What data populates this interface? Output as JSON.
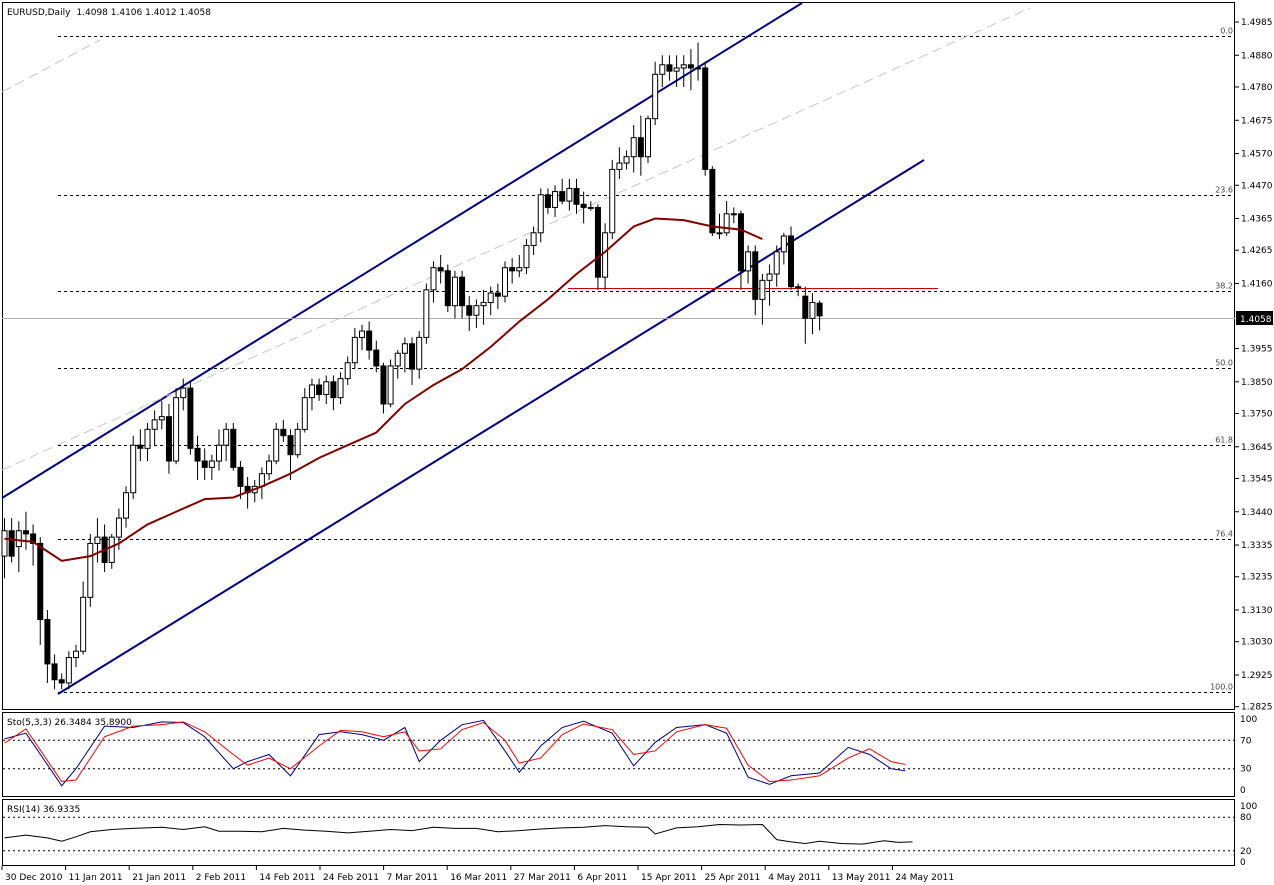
{
  "chart_data": {
    "type": "candlestick",
    "header": {
      "symbol": "EURUSD,Daily",
      "ohlc": "1.4098 1.4106 1.4012 1.4058"
    },
    "price_axis": {
      "ticks": [
        "1.4985",
        "1.4880",
        "1.4780",
        "1.4675",
        "1.4570",
        "1.4470",
        "1.4365",
        "1.4265",
        "1.4160",
        "1.4058",
        "1.3955",
        "1.3850",
        "1.3750",
        "1.3645",
        "1.3545",
        "1.3440",
        "1.3335",
        "1.3235",
        "1.3130",
        "1.3030",
        "1.2925",
        "1.2825"
      ],
      "ylim": [
        1.2825,
        1.5015
      ],
      "current_price": "1.4058"
    },
    "date_axis": {
      "labels": [
        "30 Dec 2010",
        "11 Jan 2011",
        "21 Jan 2011",
        "2 Feb 2011",
        "14 Feb 2011",
        "24 Feb 2011",
        "7 Mar 2011",
        "16 Mar 2011",
        "27 Mar 2011",
        "6 Apr 2011",
        "15 Apr 2011",
        "25 Apr 2011",
        "4 May 2011",
        "13 May 2011",
        "24 May 2011"
      ]
    },
    "fibonacci_levels": [
      {
        "label": "0.0",
        "price": 1.494
      },
      {
        "label": "23.6",
        "price": 1.444
      },
      {
        "label": "38.2",
        "price": 1.4135
      },
      {
        "label": "50.0",
        "price": 1.3895
      },
      {
        "label": "61.8",
        "price": 1.365
      },
      {
        "label": "76.4",
        "price": 1.3355
      },
      {
        "label": "100.0",
        "price": 1.287
      }
    ],
    "moving_average": [
      [
        0,
        1.3355
      ],
      [
        4,
        1.3345
      ],
      [
        8,
        1.3285
      ],
      [
        12,
        1.33
      ],
      [
        16,
        1.334
      ],
      [
        20,
        1.34
      ],
      [
        24,
        1.344
      ],
      [
        28,
        1.348
      ],
      [
        32,
        1.3485
      ],
      [
        36,
        1.352
      ],
      [
        40,
        1.356
      ],
      [
        44,
        1.361
      ],
      [
        48,
        1.365
      ],
      [
        52,
        1.369
      ],
      [
        56,
        1.378
      ],
      [
        60,
        1.384
      ],
      [
        64,
        1.389
      ],
      [
        68,
        1.396
      ],
      [
        72,
        1.404
      ],
      [
        76,
        1.411
      ],
      [
        80,
        1.419
      ],
      [
        84,
        1.426
      ],
      [
        88,
        1.434
      ],
      [
        91,
        1.4365
      ],
      [
        95,
        1.436
      ],
      [
        99,
        1.434
      ],
      [
        103,
        1.433
      ],
      [
        106,
        1.43
      ]
    ],
    "candles": [
      [
        1.33,
        1.342,
        1.323,
        1.338
      ],
      [
        1.338,
        1.342,
        1.328,
        1.33
      ],
      [
        1.333,
        1.341,
        1.325,
        1.338
      ],
      [
        1.338,
        1.344,
        1.332,
        1.337
      ],
      [
        1.337,
        1.34,
        1.327,
        1.334
      ],
      [
        1.334,
        1.336,
        1.302,
        1.31
      ],
      [
        1.31,
        1.313,
        1.29,
        1.296
      ],
      [
        1.296,
        1.299,
        1.288,
        1.291
      ],
      [
        1.291,
        1.293,
        1.288,
        1.29
      ],
      [
        1.29,
        1.3,
        1.288,
        1.298
      ],
      [
        1.298,
        1.302,
        1.295,
        1.3
      ],
      [
        1.3,
        1.322,
        1.299,
        1.317
      ],
      [
        1.317,
        1.337,
        1.314,
        1.334
      ],
      [
        1.334,
        1.342,
        1.328,
        1.336
      ],
      [
        1.336,
        1.34,
        1.325,
        1.328
      ],
      [
        1.328,
        1.337,
        1.326,
        1.336
      ],
      [
        1.336,
        1.345,
        1.332,
        1.342
      ],
      [
        1.342,
        1.352,
        1.339,
        1.35
      ],
      [
        1.35,
        1.368,
        1.348,
        1.365
      ],
      [
        1.365,
        1.37,
        1.36,
        1.364
      ],
      [
        1.364,
        1.372,
        1.36,
        1.37
      ],
      [
        1.37,
        1.376,
        1.365,
        1.373
      ],
      [
        1.373,
        1.379,
        1.37,
        1.374
      ],
      [
        1.374,
        1.378,
        1.356,
        1.36
      ],
      [
        1.36,
        1.383,
        1.359,
        1.38
      ],
      [
        1.38,
        1.386,
        1.376,
        1.383
      ],
      [
        1.383,
        1.385,
        1.362,
        1.364
      ],
      [
        1.364,
        1.368,
        1.354,
        1.36
      ],
      [
        1.36,
        1.364,
        1.354,
        1.358
      ],
      [
        1.358,
        1.362,
        1.354,
        1.36
      ],
      [
        1.36,
        1.37,
        1.357,
        1.365
      ],
      [
        1.365,
        1.372,
        1.36,
        1.37
      ],
      [
        1.37,
        1.372,
        1.357,
        1.358
      ],
      [
        1.358,
        1.36,
        1.348,
        1.352
      ],
      [
        1.352,
        1.355,
        1.345,
        1.35
      ],
      [
        1.35,
        1.354,
        1.347,
        1.352
      ],
      [
        1.352,
        1.358,
        1.348,
        1.356
      ],
      [
        1.356,
        1.362,
        1.354,
        1.36
      ],
      [
        1.36,
        1.372,
        1.359,
        1.37
      ],
      [
        1.37,
        1.373,
        1.366,
        1.368
      ],
      [
        1.368,
        1.37,
        1.354,
        1.362
      ],
      [
        1.362,
        1.372,
        1.361,
        1.37
      ],
      [
        1.37,
        1.383,
        1.369,
        1.38
      ],
      [
        1.38,
        1.386,
        1.376,
        1.384
      ],
      [
        1.384,
        1.386,
        1.379,
        1.381
      ],
      [
        1.381,
        1.387,
        1.378,
        1.385
      ],
      [
        1.385,
        1.387,
        1.376,
        1.38
      ],
      [
        1.38,
        1.388,
        1.378,
        1.386
      ],
      [
        1.386,
        1.393,
        1.384,
        1.391
      ],
      [
        1.391,
        1.402,
        1.389,
        1.399
      ],
      [
        1.399,
        1.403,
        1.395,
        1.401
      ],
      [
        1.401,
        1.404,
        1.392,
        1.395
      ],
      [
        1.395,
        1.398,
        1.388,
        1.39
      ],
      [
        1.39,
        1.391,
        1.375,
        1.378
      ],
      [
        1.378,
        1.392,
        1.377,
        1.39
      ],
      [
        1.39,
        1.395,
        1.386,
        1.394
      ],
      [
        1.394,
        1.399,
        1.388,
        1.397
      ],
      [
        1.397,
        1.399,
        1.384,
        1.389
      ],
      [
        1.389,
        1.401,
        1.386,
        1.399
      ],
      [
        1.399,
        1.416,
        1.397,
        1.414
      ],
      [
        1.414,
        1.423,
        1.41,
        1.421
      ],
      [
        1.421,
        1.425,
        1.416,
        1.42
      ],
      [
        1.42,
        1.422,
        1.407,
        1.409
      ],
      [
        1.409,
        1.42,
        1.405,
        1.418
      ],
      [
        1.418,
        1.42,
        1.405,
        1.409
      ],
      [
        1.409,
        1.412,
        1.401,
        1.406
      ],
      [
        1.406,
        1.411,
        1.402,
        1.409
      ],
      [
        1.409,
        1.414,
        1.403,
        1.41
      ],
      [
        1.41,
        1.415,
        1.406,
        1.413
      ],
      [
        1.413,
        1.416,
        1.408,
        1.412
      ],
      [
        1.412,
        1.423,
        1.41,
        1.421
      ],
      [
        1.421,
        1.424,
        1.416,
        1.42
      ],
      [
        1.42,
        1.425,
        1.418,
        1.421
      ],
      [
        1.421,
        1.43,
        1.419,
        1.428
      ],
      [
        1.428,
        1.434,
        1.425,
        1.432
      ],
      [
        1.432,
        1.446,
        1.429,
        1.444
      ],
      [
        1.444,
        1.446,
        1.438,
        1.44
      ],
      [
        1.44,
        1.447,
        1.437,
        1.445
      ],
      [
        1.445,
        1.449,
        1.441,
        1.442
      ],
      [
        1.442,
        1.449,
        1.439,
        1.446
      ],
      [
        1.446,
        1.449,
        1.438,
        1.441
      ],
      [
        1.441,
        1.445,
        1.435,
        1.44
      ],
      [
        1.44,
        1.442,
        1.439,
        1.44
      ],
      [
        1.44,
        1.441,
        1.414,
        1.418
      ],
      [
        1.418,
        1.435,
        1.414,
        1.432
      ],
      [
        1.432,
        1.455,
        1.43,
        1.452
      ],
      [
        1.452,
        1.459,
        1.449,
        1.454
      ],
      [
        1.454,
        1.458,
        1.452,
        1.456
      ],
      [
        1.456,
        1.466,
        1.451,
        1.462
      ],
      [
        1.462,
        1.469,
        1.45,
        1.456
      ],
      [
        1.456,
        1.469,
        1.454,
        1.468
      ],
      [
        1.468,
        1.486,
        1.466,
        1.482
      ],
      [
        1.482,
        1.488,
        1.478,
        1.485
      ],
      [
        1.485,
        1.488,
        1.48,
        1.483
      ],
      [
        1.483,
        1.488,
        1.478,
        1.484
      ],
      [
        1.484,
        1.488,
        1.478,
        1.485
      ],
      [
        1.485,
        1.49,
        1.477,
        1.484
      ],
      [
        1.484,
        1.492,
        1.48,
        1.484
      ],
      [
        1.484,
        1.486,
        1.45,
        1.452
      ],
      [
        1.452,
        1.453,
        1.431,
        1.432
      ],
      [
        1.432,
        1.438,
        1.43,
        1.432
      ],
      [
        1.432,
        1.442,
        1.431,
        1.438
      ],
      [
        1.438,
        1.44,
        1.435,
        1.438
      ],
      [
        1.438,
        1.439,
        1.414,
        1.42
      ],
      [
        1.42,
        1.428,
        1.416,
        1.426
      ],
      [
        1.426,
        1.428,
        1.406,
        1.411
      ],
      [
        1.411,
        1.419,
        1.403,
        1.417
      ],
      [
        1.417,
        1.422,
        1.409,
        1.419
      ],
      [
        1.419,
        1.428,
        1.415,
        1.426
      ],
      [
        1.426,
        1.432,
        1.422,
        1.431
      ],
      [
        1.431,
        1.434,
        1.414,
        1.415
      ],
      [
        1.415,
        1.416,
        1.412,
        1.415
      ],
      [
        1.412,
        1.415,
        1.397,
        1.405
      ],
      [
        1.405,
        1.413,
        1.4,
        1.41
      ],
      [
        1.4098,
        1.4106,
        1.4012,
        1.4058
      ]
    ],
    "stochastic": {
      "label": "Sto(5,3,3) 26.3484 35.8900",
      "ticks": [
        "100",
        "70",
        "30",
        "0"
      ],
      "k": [
        [
          0,
          72
        ],
        [
          3,
          80
        ],
        [
          8,
          6
        ],
        [
          10,
          30
        ],
        [
          14,
          90
        ],
        [
          18,
          88
        ],
        [
          22,
          96
        ],
        [
          25,
          95
        ],
        [
          28,
          75
        ],
        [
          32,
          30
        ],
        [
          34,
          40
        ],
        [
          37,
          50
        ],
        [
          40,
          20
        ],
        [
          44,
          78
        ],
        [
          47,
          82
        ],
        [
          50,
          78
        ],
        [
          53,
          70
        ],
        [
          56,
          88
        ],
        [
          58,
          40
        ],
        [
          61,
          70
        ],
        [
          64,
          92
        ],
        [
          67,
          98
        ],
        [
          70,
          55
        ],
        [
          72,
          25
        ],
        [
          75,
          62
        ],
        [
          78,
          88
        ],
        [
          81,
          97
        ],
        [
          85,
          80
        ],
        [
          88,
          34
        ],
        [
          91,
          67
        ],
        [
          94,
          88
        ],
        [
          98,
          92
        ],
        [
          101,
          80
        ],
        [
          104,
          18
        ],
        [
          107,
          8
        ],
        [
          110,
          20
        ],
        [
          114,
          24
        ],
        [
          118,
          60
        ],
        [
          121,
          50
        ],
        [
          124,
          30
        ],
        [
          126,
          27
        ]
      ],
      "d": [
        [
          0,
          66
        ],
        [
          3,
          86
        ],
        [
          8,
          12
        ],
        [
          10,
          14
        ],
        [
          14,
          75
        ],
        [
          18,
          90
        ],
        [
          22,
          92
        ],
        [
          25,
          96
        ],
        [
          28,
          82
        ],
        [
          32,
          50
        ],
        [
          34,
          35
        ],
        [
          37,
          45
        ],
        [
          40,
          30
        ],
        [
          44,
          62
        ],
        [
          47,
          84
        ],
        [
          50,
          82
        ],
        [
          53,
          75
        ],
        [
          56,
          82
        ],
        [
          58,
          55
        ],
        [
          61,
          58
        ],
        [
          64,
          85
        ],
        [
          67,
          95
        ],
        [
          70,
          70
        ],
        [
          72,
          38
        ],
        [
          75,
          45
        ],
        [
          78,
          78
        ],
        [
          81,
          93
        ],
        [
          85,
          85
        ],
        [
          88,
          50
        ],
        [
          91,
          55
        ],
        [
          94,
          82
        ],
        [
          98,
          92
        ],
        [
          101,
          87
        ],
        [
          104,
          35
        ],
        [
          107,
          12
        ],
        [
          110,
          14
        ],
        [
          114,
          20
        ],
        [
          118,
          45
        ],
        [
          121,
          58
        ],
        [
          124,
          40
        ],
        [
          126,
          36
        ]
      ]
    },
    "rsi": {
      "label": "RSI(14) 36.9335",
      "ticks": [
        "100",
        "80",
        "20",
        "0"
      ],
      "values": [
        [
          0,
          43
        ],
        [
          3,
          48
        ],
        [
          6,
          43
        ],
        [
          8,
          37
        ],
        [
          10,
          45
        ],
        [
          12,
          54
        ],
        [
          15,
          58
        ],
        [
          18,
          60
        ],
        [
          22,
          62
        ],
        [
          25,
          58
        ],
        [
          28,
          63
        ],
        [
          30,
          55
        ],
        [
          33,
          55
        ],
        [
          36,
          54
        ],
        [
          39,
          60
        ],
        [
          42,
          57
        ],
        [
          45,
          55
        ],
        [
          48,
          52
        ],
        [
          51,
          55
        ],
        [
          54,
          58
        ],
        [
          57,
          56
        ],
        [
          60,
          62
        ],
        [
          63,
          60
        ],
        [
          66,
          60
        ],
        [
          69,
          54
        ],
        [
          72,
          56
        ],
        [
          75,
          59
        ],
        [
          78,
          61
        ],
        [
          81,
          62
        ],
        [
          84,
          65
        ],
        [
          87,
          63
        ],
        [
          90,
          62
        ],
        [
          91,
          50
        ],
        [
          94,
          61
        ],
        [
          97,
          63
        ],
        [
          100,
          67
        ],
        [
          103,
          66
        ],
        [
          106,
          67
        ],
        [
          108,
          40
        ],
        [
          110,
          36
        ],
        [
          112,
          33
        ],
        [
          114,
          37
        ],
        [
          117,
          33
        ],
        [
          120,
          32
        ],
        [
          123,
          38
        ],
        [
          125,
          35
        ],
        [
          127,
          36
        ]
      ]
    }
  }
}
